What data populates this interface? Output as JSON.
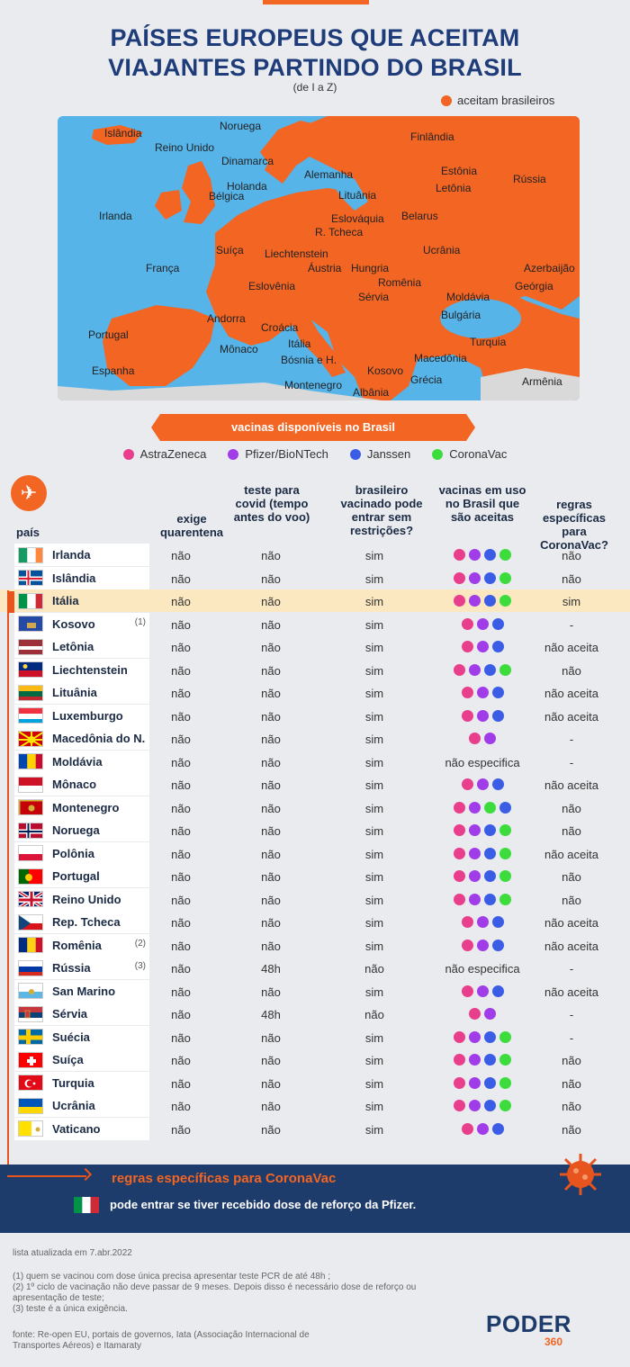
{
  "title_line1": "PAÍSES EUROPEUS QUE ACEITAM",
  "title_line2": "VIAJANTES PARTINDO DO BRASIL",
  "subtitle": "(de I a Z)",
  "map_legend": "aceitam brasileiros",
  "colors": {
    "accent": "#f26522",
    "navy": "#1d3b6b",
    "sea": "#56b4e9",
    "land_gray": "#d9d9d9"
  },
  "map_labels": [
    "Noruega",
    "Islândia",
    "Reino Unido",
    "Finlândia",
    "Dinamarca",
    "Estônia",
    "Rússia",
    "Alemanha",
    "Holanda",
    "Letônia",
    "Bélgica",
    "Lituânia",
    "Irlanda",
    "Eslováquia",
    "Belarus",
    "R. Tcheca",
    "Ucrânia",
    "Suíça",
    "Liechtenstein",
    "França",
    "Áustria",
    "Hungria",
    "Azerbaijão",
    "Eslovênia",
    "Romênia",
    "Geórgia",
    "Moldávia",
    "Sérvia",
    "Andorra",
    "Bulgária",
    "Croácia",
    "Portugal",
    "Mônaco",
    "Turquia",
    "Itália",
    "Bósnia e H.",
    "Macedônia",
    "Espanha",
    "Kosovo",
    "Grécia",
    "Montenegro",
    "Albânia",
    "Armênia"
  ],
  "vaccines_title": "vacinas disponíveis no Brasil",
  "vaccines": [
    {
      "name": "AstraZeneca",
      "color": "#e83e8c"
    },
    {
      "name": "Pfizer/BioNTech",
      "color": "#a03ce8"
    },
    {
      "name": "Janssen",
      "color": "#3b5de6"
    },
    {
      "name": "CoronaVac",
      "color": "#3ddc3d"
    }
  ],
  "headers": {
    "pais": "país",
    "quarentena": "exige quarentena",
    "teste": "teste para covid (tempo antes do voo)",
    "vacinado": "brasileiro vacinado pode entrar sem restrições?",
    "vacinas": "vacinas em uso no Brasil que são aceitas",
    "regras": "regras específicas para CoronaVac?"
  },
  "rows": [
    {
      "name": "Irlanda",
      "note": "",
      "q": "não",
      "t": "não",
      "v": "sim",
      "vax": [
        0,
        1,
        2,
        3
      ],
      "vtext": "",
      "r": "não",
      "flag": "irlanda"
    },
    {
      "name": "Islândia",
      "note": "",
      "q": "não",
      "t": "não",
      "v": "sim",
      "vax": [
        0,
        1,
        2,
        3
      ],
      "vtext": "",
      "r": "não",
      "flag": "islandia"
    },
    {
      "name": "Itália",
      "note": "",
      "q": "não",
      "t": "não",
      "v": "sim",
      "vax": [
        0,
        1,
        2,
        3
      ],
      "vtext": "",
      "r": "sim",
      "flag": "italia",
      "hl": true
    },
    {
      "name": "Kosovo",
      "note": "(1)",
      "q": "não",
      "t": "não",
      "v": "sim",
      "vax": [
        0,
        1,
        2
      ],
      "vtext": "",
      "r": "-",
      "flag": "kosovo"
    },
    {
      "name": "Letônia",
      "note": "",
      "q": "não",
      "t": "não",
      "v": "sim",
      "vax": [
        0,
        1,
        2
      ],
      "vtext": "",
      "r": "não aceita",
      "flag": "letonia"
    },
    {
      "name": "Liechtenstein",
      "note": "",
      "q": "não",
      "t": "não",
      "v": "sim",
      "vax": [
        0,
        1,
        2,
        3
      ],
      "vtext": "",
      "r": "não",
      "flag": "liechtenstein"
    },
    {
      "name": "Lituânia",
      "note": "",
      "q": "não",
      "t": "não",
      "v": "sim",
      "vax": [
        0,
        1,
        2
      ],
      "vtext": "",
      "r": "não aceita",
      "flag": "lituania"
    },
    {
      "name": "Luxemburgo",
      "note": "",
      "q": "não",
      "t": "não",
      "v": "sim",
      "vax": [
        0,
        1,
        2
      ],
      "vtext": "",
      "r": "não aceita",
      "flag": "luxemburgo"
    },
    {
      "name": "Macedônia do N.",
      "note": "",
      "q": "não",
      "t": "não",
      "v": "sim",
      "vax": [
        0,
        1
      ],
      "vtext": "",
      "r": "-",
      "flag": "macedonia"
    },
    {
      "name": "Moldávia",
      "note": "",
      "q": "não",
      "t": "não",
      "v": "sim",
      "vax": [],
      "vtext": "não especifica",
      "r": "-",
      "flag": "moldavia"
    },
    {
      "name": "Mônaco",
      "note": "",
      "q": "não",
      "t": "não",
      "v": "sim",
      "vax": [
        0,
        1,
        2
      ],
      "vtext": "",
      "r": "não aceita",
      "flag": "monaco"
    },
    {
      "name": "Montenegro",
      "note": "",
      "q": "não",
      "t": "não",
      "v": "sim",
      "vax": [
        0,
        1,
        3,
        2
      ],
      "vtext": "",
      "r": "não",
      "flag": "montenegro"
    },
    {
      "name": "Noruega",
      "note": "",
      "q": "não",
      "t": "não",
      "v": "sim",
      "vax": [
        0,
        1,
        2,
        3
      ],
      "vtext": "",
      "r": "não",
      "flag": "noruega"
    },
    {
      "name": "Polônia",
      "note": "",
      "q": "não",
      "t": "não",
      "v": "sim",
      "vax": [
        0,
        1,
        2,
        3
      ],
      "vtext": "",
      "r": "não aceita",
      "flag": "polonia"
    },
    {
      "name": "Portugal",
      "note": "",
      "q": "não",
      "t": "não",
      "v": "sim",
      "vax": [
        0,
        1,
        2,
        3
      ],
      "vtext": "",
      "r": "não",
      "flag": "portugal"
    },
    {
      "name": "Reino Unido",
      "note": "",
      "q": "não",
      "t": "não",
      "v": "sim",
      "vax": [
        0,
        1,
        2,
        3
      ],
      "vtext": "",
      "r": "não",
      "flag": "reinounido"
    },
    {
      "name": "Rep. Tcheca",
      "note": "",
      "q": "não",
      "t": "não",
      "v": "sim",
      "vax": [
        0,
        1,
        2
      ],
      "vtext": "",
      "r": "não aceita",
      "flag": "tcheca"
    },
    {
      "name": "Romênia",
      "note": "(2)",
      "q": "não",
      "t": "não",
      "v": "sim",
      "vax": [
        0,
        1,
        2
      ],
      "vtext": "",
      "r": "não aceita",
      "flag": "romenia"
    },
    {
      "name": "Rússia",
      "note": "(3)",
      "q": "não",
      "t": "48h",
      "v": "não",
      "vax": [],
      "vtext": "não especifica",
      "r": "-",
      "flag": "russia"
    },
    {
      "name": "San Marino",
      "note": "",
      "q": "não",
      "t": "não",
      "v": "sim",
      "vax": [
        0,
        1,
        2
      ],
      "vtext": "",
      "r": "não aceita",
      "flag": "sanmarino"
    },
    {
      "name": "Sérvia",
      "note": "",
      "q": "não",
      "t": "48h",
      "v": "não",
      "vax": [
        0,
        1
      ],
      "vtext": "",
      "r": "-",
      "flag": "servia"
    },
    {
      "name": "Suécia",
      "note": "",
      "q": "não",
      "t": "não",
      "v": "sim",
      "vax": [
        0,
        1,
        2,
        3
      ],
      "vtext": "",
      "r": "-",
      "flag": "suecia"
    },
    {
      "name": "Suíça",
      "note": "",
      "q": "não",
      "t": "não",
      "v": "sim",
      "vax": [
        0,
        1,
        2,
        3
      ],
      "vtext": "",
      "r": "não",
      "flag": "suica"
    },
    {
      "name": "Turquia",
      "note": "",
      "q": "não",
      "t": "não",
      "v": "sim",
      "vax": [
        0,
        1,
        2,
        3
      ],
      "vtext": "",
      "r": "não",
      "flag": "turquia"
    },
    {
      "name": "Ucrânia",
      "note": "",
      "q": "não",
      "t": "não",
      "v": "sim",
      "vax": [
        0,
        1,
        2,
        3
      ],
      "vtext": "",
      "r": "não",
      "flag": "ucrania"
    },
    {
      "name": "Vaticano",
      "note": "",
      "q": "não",
      "t": "não",
      "v": "sim",
      "vax": [
        0,
        1,
        2
      ],
      "vtext": "",
      "r": "não",
      "flag": "vaticano"
    }
  ],
  "coronavac_title": "regras específicas para CoronaVac",
  "coronavac_text": "pode entrar se tiver recebido dose de reforço da Pfizer.",
  "updated": "lista atualizada em 7.abr.2022",
  "notes": [
    "(1) quem se vacinou com dose única precisa apresentar teste PCR de até 48h ;",
    "(2) 1º ciclo de vacinação não deve passar de 9 meses. Depois disso é necessário dose de reforço ou apresentação de teste;",
    "(3) teste é a única exigência."
  ],
  "source": "fonte: Re-open EU, portais de governos, Iata (Associação Internacional de Transportes Aéreos) e Itamaraty",
  "logo_text": "PODER",
  "logo_num": "360"
}
